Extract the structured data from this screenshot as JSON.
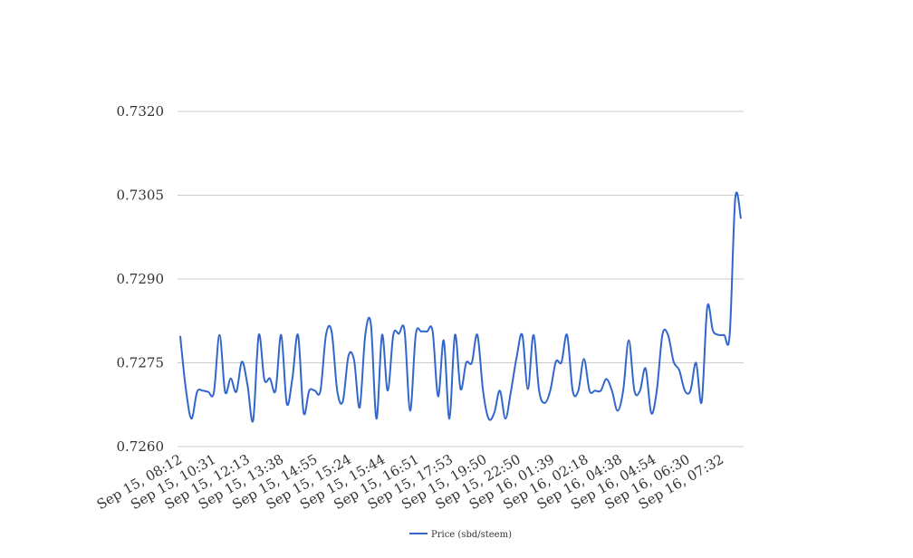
{
  "chart_data": {
    "type": "line",
    "title": "",
    "xlabel": "",
    "ylabel": "",
    "ylim": [
      0.726,
      0.732
    ],
    "yticks": [
      "0.7260",
      "0.7275",
      "0.7290",
      "0.7305",
      "0.7320"
    ],
    "ytick_values": [
      0.726,
      0.7275,
      0.729,
      0.7305,
      0.732
    ],
    "xticks": [
      "Sep 15, 08:12",
      "Sep 15, 10:31",
      "Sep 15, 12:13",
      "Sep 15, 13:38",
      "Sep 15, 14:55",
      "Sep 15, 15:24",
      "Sep 15, 15:44",
      "Sep 15, 16:51",
      "Sep 15, 17:53",
      "Sep 15, 19:50",
      "Sep 15, 22:50",
      "Sep 16, 01:39",
      "Sep 16, 02:18",
      "Sep 16, 04:38",
      "Sep 16, 04:54",
      "Sep 16, 06:30",
      "Sep 16, 07:32"
    ],
    "grid": true,
    "legend_position": "bottom",
    "series": [
      {
        "name": "Price (sbd/steem)",
        "color": "#3366cc",
        "values": [
          0.72798,
          0.72703,
          0.7265,
          0.72698,
          0.727,
          0.72698,
          0.72697,
          0.728,
          0.72698,
          0.72722,
          0.72698,
          0.72752,
          0.7271,
          0.72647,
          0.728,
          0.7272,
          0.72722,
          0.727,
          0.728,
          0.72677,
          0.72722,
          0.728,
          0.72661,
          0.727,
          0.727,
          0.727,
          0.728,
          0.72806,
          0.727,
          0.72681,
          0.72762,
          0.72755,
          0.7267,
          0.728,
          0.72819,
          0.7265,
          0.728,
          0.727,
          0.728,
          0.72802,
          0.72808,
          0.72664,
          0.728,
          0.72806,
          0.72806,
          0.72807,
          0.7269,
          0.7279,
          0.7265,
          0.728,
          0.72703,
          0.7275,
          0.7275,
          0.728,
          0.727,
          0.7265,
          0.7266,
          0.727,
          0.7265,
          0.727,
          0.7276,
          0.728,
          0.72703,
          0.728,
          0.727,
          0.72678,
          0.727,
          0.72752,
          0.72751,
          0.728,
          0.727,
          0.727,
          0.72757,
          0.727,
          0.727,
          0.727,
          0.72721,
          0.727,
          0.72664,
          0.727,
          0.7279,
          0.727,
          0.727,
          0.7274,
          0.7266,
          0.727,
          0.728,
          0.728,
          0.72752,
          0.72737,
          0.727,
          0.727,
          0.7275,
          0.7268,
          0.7285,
          0.72808,
          0.728,
          0.728,
          0.728,
          0.73045,
          0.73008
        ]
      }
    ]
  }
}
